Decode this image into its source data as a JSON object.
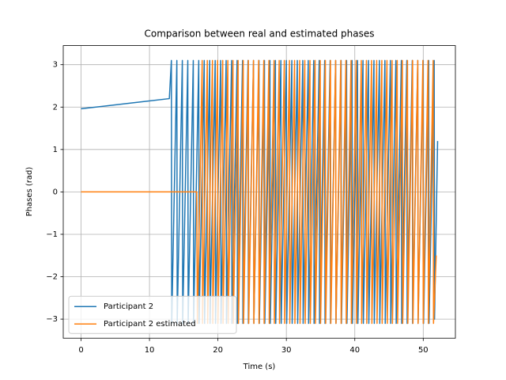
{
  "chart_data": {
    "type": "line",
    "title": "Comparison between real and estimated phases",
    "xlabel": "Time (s)",
    "ylabel": "Phases (rad)",
    "xlim": [
      -2.6,
      54.7
    ],
    "ylim": [
      -3.45,
      3.45
    ],
    "xticks": [
      0,
      10,
      20,
      30,
      40,
      50
    ],
    "yticks": [
      {
        "value": -3,
        "label": "−3"
      },
      {
        "value": -2,
        "label": "−2"
      },
      {
        "value": -1,
        "label": "−1"
      },
      0,
      1,
      2,
      3
    ],
    "grid": true,
    "legend": "lower left",
    "series": [
      {
        "name": "Participant 2",
        "color": "#1f77b4",
        "x": [
          0,
          12.9,
          13.2,
          13.25,
          14.0,
          14.05,
          14.8,
          14.85,
          15.6,
          15.65,
          16.4,
          16.45,
          17.2,
          17.25,
          18.0,
          18.05,
          18.8,
          18.85,
          19.6,
          19.65,
          20.4,
          20.45,
          21.2,
          21.25,
          22.0,
          22.05,
          22.8,
          22.85,
          23.6,
          23.65,
          24.4,
          24.45,
          25.2,
          25.25,
          26.0,
          26.05,
          26.8,
          26.85,
          27.6,
          27.65,
          28.4,
          28.45,
          29.2,
          29.25,
          30.0,
          30.05,
          30.8,
          30.85,
          31.6,
          31.65,
          32.4,
          32.45,
          33.2,
          33.25,
          34.0,
          34.05,
          34.8,
          34.85,
          35.6,
          35.65,
          36.4,
          36.45,
          37.2,
          37.25,
          38.0,
          38.05,
          38.8,
          38.85,
          39.6,
          39.65,
          40.4,
          40.45,
          41.2,
          41.25,
          42.0,
          42.05,
          42.8,
          42.85,
          43.6,
          43.65,
          44.4,
          44.45,
          45.2,
          45.25,
          46.0,
          46.05,
          46.8,
          46.85,
          47.6,
          47.65,
          48.4,
          48.45,
          49.2,
          49.25,
          50.0,
          50.05,
          50.8,
          50.85,
          51.6,
          51.65,
          52.1
        ],
        "values": [
          1.96,
          2.2,
          3.1,
          -3.1,
          3.1,
          -3.1,
          3.1,
          -3.1,
          3.1,
          -3.1,
          3.1,
          -3.1,
          3.1,
          -3.1,
          3.1,
          -3.1,
          3.1,
          -3.1,
          3.1,
          -3.1,
          3.1,
          -3.1,
          3.1,
          -3.1,
          3.1,
          -3.1,
          3.1,
          -3.1,
          3.1,
          -3.1,
          3.1,
          -3.1,
          3.1,
          -3.1,
          3.1,
          -3.1,
          3.1,
          -3.1,
          3.1,
          -3.1,
          3.1,
          -3.1,
          3.1,
          -3.1,
          3.1,
          -3.1,
          3.1,
          -3.1,
          3.1,
          -3.1,
          3.1,
          -3.1,
          3.1,
          -3.1,
          3.1,
          -3.1,
          3.1,
          -3.1,
          3.1,
          -3.1,
          3.1,
          -3.1,
          3.1,
          -3.1,
          3.1,
          -3.1,
          3.1,
          -3.1,
          3.1,
          -3.1,
          3.1,
          -3.1,
          3.1,
          -3.1,
          3.1,
          -3.1,
          3.1,
          -3.1,
          3.1,
          -3.1,
          3.1,
          -3.1,
          3.1,
          -3.1,
          3.1,
          -3.1,
          3.1,
          -3.1,
          3.1,
          -3.1,
          3.1,
          -3.1,
          3.1,
          -3.1,
          3.1,
          -3.1,
          3.1,
          -3.1,
          3.1,
          -3.0,
          1.2
        ]
      },
      {
        "name": "Participant 2 estimated",
        "color": "#ff7f0e",
        "x": [
          0,
          16.9,
          17.0,
          17.7,
          17.75,
          18.45,
          18.5,
          19.2,
          19.25,
          19.95,
          20.0,
          20.7,
          20.75,
          21.45,
          21.5,
          22.2,
          22.25,
          22.95,
          23.0,
          23.7,
          23.75,
          24.45,
          24.5,
          25.2,
          25.25,
          25.95,
          26.0,
          26.7,
          26.75,
          27.45,
          27.5,
          28.2,
          28.25,
          28.95,
          29.0,
          29.7,
          29.75,
          30.45,
          30.5,
          31.2,
          31.25,
          31.95,
          32.0,
          32.7,
          32.75,
          33.45,
          33.5,
          34.2,
          34.25,
          34.95,
          35.0,
          35.7,
          35.75,
          36.45,
          36.5,
          37.2,
          37.25,
          37.95,
          38.0,
          38.7,
          38.75,
          39.45,
          39.5,
          40.2,
          40.25,
          40.95,
          41.0,
          41.7,
          41.75,
          42.45,
          42.5,
          43.2,
          43.25,
          43.95,
          44.0,
          44.7,
          44.75,
          45.45,
          45.5,
          46.2,
          46.25,
          46.95,
          47.0,
          47.7,
          47.75,
          48.45,
          48.5,
          49.2,
          49.25,
          49.95,
          50.0,
          50.7,
          50.75,
          51.45,
          51.5,
          51.9
        ],
        "values": [
          0,
          0,
          -3.1,
          3.1,
          -3.1,
          3.1,
          -3.1,
          3.1,
          -3.1,
          3.1,
          -3.1,
          3.1,
          -3.1,
          3.1,
          -3.1,
          3.1,
          -3.1,
          3.1,
          -3.1,
          3.1,
          -3.1,
          3.1,
          -3.1,
          3.1,
          -3.1,
          3.1,
          -3.1,
          3.1,
          -3.1,
          3.1,
          -3.1,
          3.1,
          -3.1,
          3.1,
          -3.1,
          3.1,
          -3.1,
          3.1,
          -3.1,
          3.1,
          -3.1,
          3.1,
          -3.1,
          3.1,
          -3.1,
          3.1,
          -3.1,
          3.1,
          -3.1,
          3.1,
          -3.1,
          3.1,
          -3.1,
          3.1,
          -3.1,
          3.1,
          -3.1,
          3.1,
          -3.1,
          3.1,
          -3.1,
          3.1,
          -3.1,
          3.1,
          -3.1,
          3.1,
          -3.1,
          3.1,
          -3.1,
          3.1,
          -3.1,
          3.1,
          -3.1,
          3.1,
          -3.1,
          3.1,
          -3.1,
          3.1,
          -3.1,
          3.1,
          -3.1,
          3.1,
          -3.1,
          3.1,
          -3.1,
          3.1,
          -3.1,
          3.1,
          -3.1,
          3.1,
          -3.1,
          3.1,
          -3.1,
          3.1,
          -3.1,
          -1.5
        ]
      }
    ]
  }
}
